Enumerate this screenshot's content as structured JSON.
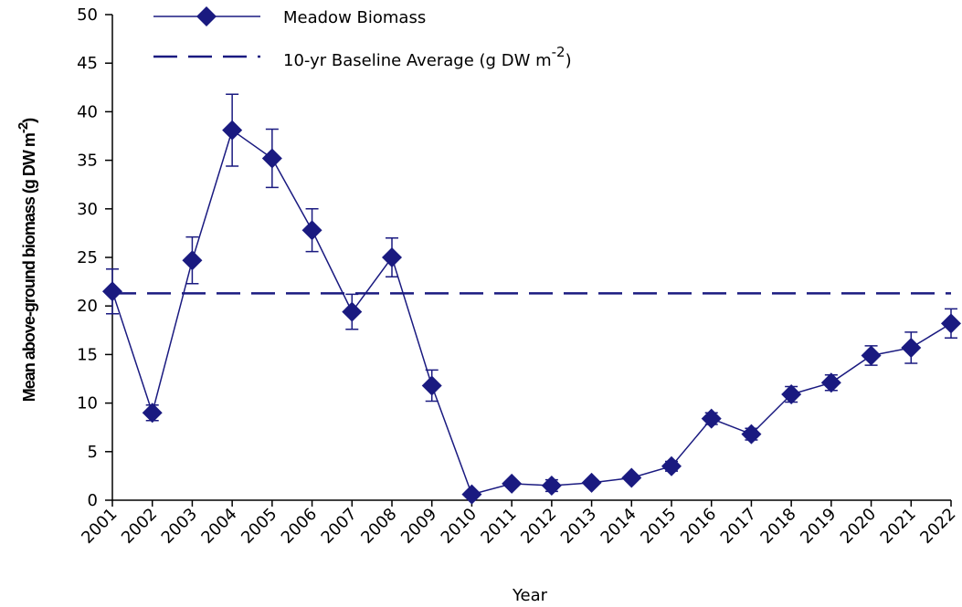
{
  "chart_data": {
    "type": "line",
    "categories": [
      "2001",
      "2002",
      "2003",
      "2004",
      "2005",
      "2006",
      "2007",
      "2008",
      "2009",
      "2010",
      "2011",
      "2012",
      "2013",
      "2014",
      "2015",
      "2016",
      "2017",
      "2018",
      "2019",
      "2020",
      "2021",
      "2022"
    ],
    "series": [
      {
        "name": "Meadow Biomass",
        "color": "#1a1a80",
        "values": [
          21.5,
          9.0,
          24.7,
          38.1,
          35.2,
          27.8,
          19.4,
          25.0,
          11.8,
          0.6,
          1.7,
          1.5,
          1.8,
          2.3,
          3.5,
          8.4,
          6.8,
          10.9,
          12.1,
          14.9,
          15.7,
          18.2
        ],
        "errors": [
          2.3,
          0.8,
          2.4,
          3.7,
          3.0,
          2.2,
          1.8,
          2.0,
          1.6,
          0.3,
          0.3,
          0.6,
          0.3,
          0.3,
          0.5,
          0.6,
          0.6,
          0.8,
          0.8,
          1.0,
          1.6,
          1.5
        ]
      }
    ],
    "reference_line": {
      "name": {
        "text": "10-yr Baseline Average (g DW m",
        "superscript": "-2",
        "tail": ")"
      },
      "value": 21.3,
      "color": "#1a1a80",
      "style": "dashed"
    },
    "x_label": "Year",
    "y_label": {
      "text": "Mean above-ground biomass (g DW m",
      "superscript": "-2",
      "tail": ")"
    },
    "ylim": [
      0,
      50
    ],
    "yticks": [
      0,
      5,
      10,
      15,
      20,
      25,
      30,
      35,
      40,
      45,
      50
    ]
  }
}
